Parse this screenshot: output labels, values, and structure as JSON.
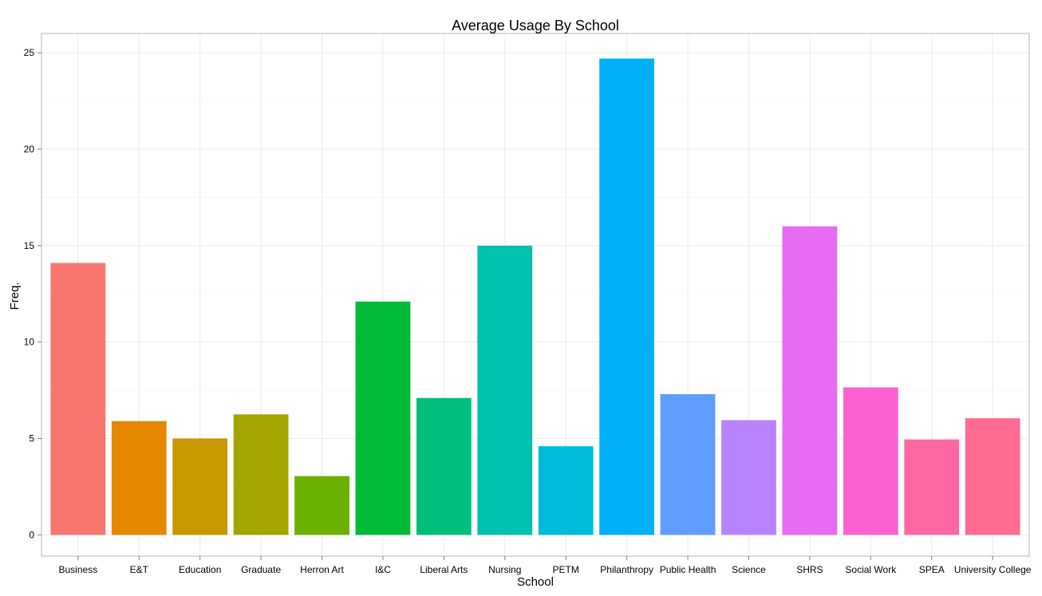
{
  "chart_data": {
    "type": "bar",
    "title": "Average Usage By School",
    "xlabel": "School",
    "ylabel": "Freq.",
    "ylim": [
      -1.1,
      26
    ],
    "yticks": [
      0,
      5,
      10,
      15,
      20,
      25
    ],
    "grid": true,
    "categories": [
      "Business",
      "E&T",
      "Education",
      "Graduate",
      "Herron Art",
      "I&C",
      "Liberal Arts",
      "Nursing",
      "PETM",
      "Philanthropy",
      "Public Health",
      "Science",
      "SHRS",
      "Social Work",
      "SPEA",
      "University College"
    ],
    "values": [
      14.1,
      5.9,
      5.0,
      6.25,
      3.05,
      12.1,
      7.1,
      15.0,
      4.6,
      24.7,
      7.3,
      5.95,
      16.0,
      7.65,
      4.95,
      6.05
    ],
    "colors": [
      "#F8766D",
      "#E58700",
      "#C99800",
      "#A3A500",
      "#6BB100",
      "#00BA38",
      "#00BF7D",
      "#00C0AF",
      "#00BCD8",
      "#00B0F6",
      "#619CFF",
      "#B983FF",
      "#E76BF3",
      "#FD61D1",
      "#FF67A4",
      "#FF6C91"
    ],
    "panel_border_color": "#b3b3b3",
    "grid_major_color": "#ebebeb",
    "grid_minor_color": "#f5f5f5"
  }
}
